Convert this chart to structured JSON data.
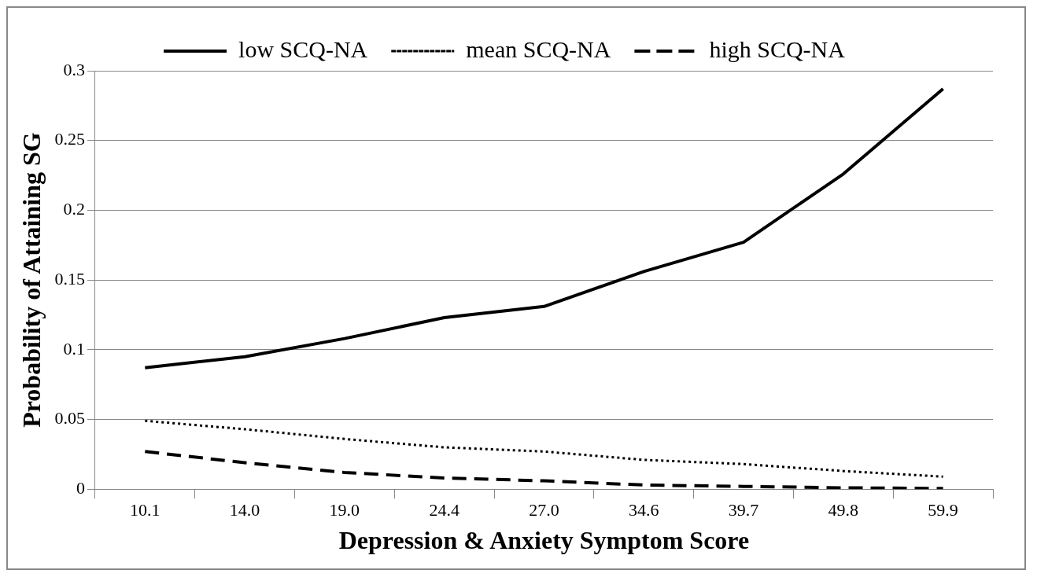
{
  "chart_data": {
    "type": "line",
    "xlabel": "Depression & Anxiety Symptom Score",
    "ylabel": "Probability of Attaining SG",
    "categories": [
      "10.1",
      "14.0",
      "19.0",
      "24.4",
      "27.0",
      "34.6",
      "39.7",
      "49.8",
      "59.9"
    ],
    "series": [
      {
        "name": "low SCQ-NA",
        "color": "#000000",
        "line_style": "solid",
        "values": [
          0.087,
          0.095,
          0.108,
          0.123,
          0.131,
          0.156,
          0.177,
          0.226,
          0.287
        ]
      },
      {
        "name": "mean SCQ-NA",
        "color": "#000000",
        "line_style": "dotted",
        "values": [
          0.049,
          0.043,
          0.036,
          0.03,
          0.027,
          0.021,
          0.018,
          0.013,
          0.009
        ]
      },
      {
        "name": "high SCQ-NA",
        "color": "#000000",
        "line_style": "dashed",
        "values": [
          0.027,
          0.019,
          0.012,
          0.008,
          0.006,
          0.003,
          0.002,
          0.001,
          0.0005
        ]
      }
    ],
    "ylim": [
      0,
      0.3
    ],
    "yticks": [
      0,
      0.05,
      0.1,
      0.15,
      0.2,
      0.25,
      0.3
    ],
    "grid": "y",
    "legend": "top",
    "marker": "none"
  }
}
